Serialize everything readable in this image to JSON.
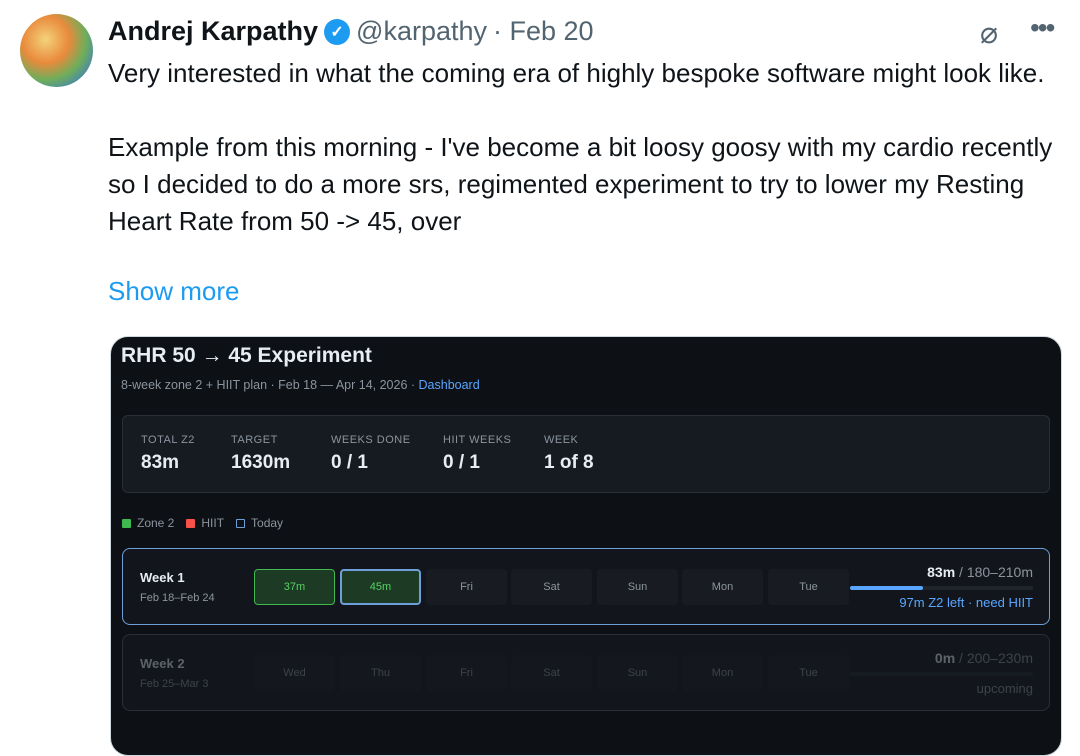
{
  "tweet": {
    "name": "Andrej Karpathy",
    "handle": "@karpathy",
    "date": "· Feb 20",
    "para1": "Very interested in what the coming era of highly bespoke software might look like.",
    "para2": "Example from this morning - I've become a bit loosy goosy with my cardio recently so I decided to do a more srs, regimented experiment to try to lower my Resting Heart Rate from 50 -> 45, over",
    "show_more": "Show more",
    "verified_icon": "verified-badge",
    "grok_icon": "grok-icon",
    "more_icon": "more-icon"
  },
  "card": {
    "title": "RHR 50 → 45 Experiment",
    "subtitle": "8-week zone 2 + HIIT plan · Feb 18 — Apr 14, 2026 · ",
    "link": "Dashboard",
    "stats": [
      {
        "label": "TOTAL Z2",
        "value": "83m"
      },
      {
        "label": "TARGET",
        "value": "1630m"
      },
      {
        "label": "WEEKS DONE",
        "value": "0 / 1"
      },
      {
        "label": "HIIT WEEKS",
        "value": "0 / 1"
      },
      {
        "label": "WEEK",
        "value": "1 of 8"
      }
    ],
    "legend": [
      {
        "label": "Zone 2",
        "color": "#3fb950"
      },
      {
        "label": "HIIT",
        "color": "#f85149"
      },
      {
        "label": "Today",
        "color": "#6e9fd8"
      }
    ],
    "weeks": [
      {
        "label": "Week 1",
        "dates": "Feb 18–Feb 24",
        "days": [
          "37m",
          "45m",
          "Fri",
          "Sat",
          "Sun",
          "Mon",
          "Tue"
        ],
        "done": "83m",
        "target": " / 180–210m",
        "progress": 0.4,
        "note": "97m Z2 left · need HIIT"
      },
      {
        "label": "Week 2",
        "dates": "Feb 25–Mar 3",
        "days": [
          "Wed",
          "Thu",
          "Fri",
          "Sat",
          "Sun",
          "Mon",
          "Tue"
        ],
        "done": "0m",
        "target": " / 200–230m",
        "progress": 0,
        "note": "upcoming"
      }
    ]
  }
}
